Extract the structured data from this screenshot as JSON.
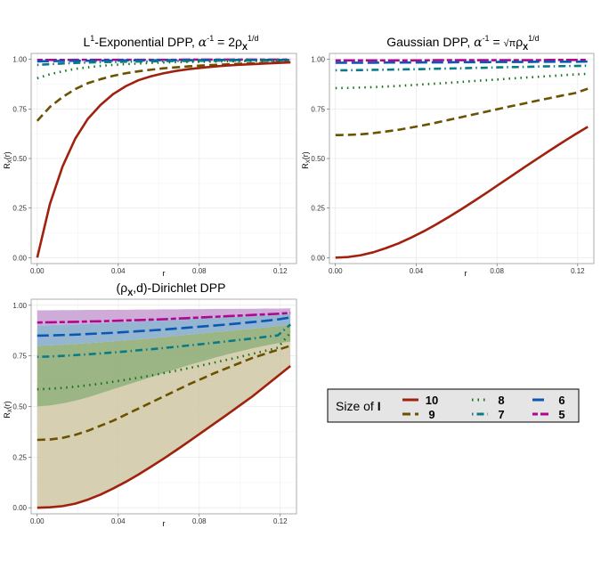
{
  "chart_data": [
    {
      "type": "line",
      "title": "L¹-Exponential DPP, α⁻¹ = 2ρX^1/d",
      "title_parts": {
        "a": "L",
        "b": "1",
        "c": "-Exponential DPP, ",
        "d": "α",
        "e": "-1",
        "f": " = 2ρ",
        "g": "X",
        "h": "1/d"
      },
      "xlabel": "r",
      "ylabel": "R_X(r)",
      "ylabel_parts": {
        "a": "R",
        "b": "X",
        "c": "(r)"
      },
      "xlim": [
        -0.003,
        0.128
      ],
      "ylim": [
        -0.03,
        1.03
      ],
      "xticks": [
        0.0,
        0.04,
        0.08,
        0.12
      ],
      "xtick_labels": [
        "0.00",
        "0.04",
        "0.08",
        "0.12"
      ],
      "yticks": [
        0.0,
        0.25,
        0.5,
        0.75,
        1.0
      ],
      "ytick_labels": [
        "0.00",
        "0.25",
        "0.50",
        "0.75",
        "1.00"
      ],
      "x": [
        0.0,
        0.00625,
        0.0125,
        0.01875,
        0.025,
        0.03125,
        0.0375,
        0.04375,
        0.05,
        0.05625,
        0.0625,
        0.06875,
        0.075,
        0.08125,
        0.0875,
        0.09375,
        0.1,
        0.10625,
        0.1125,
        0.11875,
        0.125
      ],
      "series": [
        {
          "name": "10",
          "values": [
            0.0,
            0.27,
            0.46,
            0.6,
            0.7,
            0.77,
            0.825,
            0.865,
            0.895,
            0.915,
            0.93,
            0.942,
            0.951,
            0.958,
            0.964,
            0.969,
            0.973,
            0.976,
            0.979,
            0.982,
            0.985
          ]
        },
        {
          "name": "9",
          "values": [
            0.69,
            0.76,
            0.81,
            0.85,
            0.88,
            0.9,
            0.917,
            0.93,
            0.94,
            0.948,
            0.955,
            0.96,
            0.965,
            0.969,
            0.972,
            0.975,
            0.978,
            0.98,
            0.982,
            0.984,
            0.986
          ]
        },
        {
          "name": "8",
          "values": [
            0.905,
            0.925,
            0.94,
            0.952,
            0.96,
            0.967,
            0.972,
            0.976,
            0.979,
            0.982,
            0.984,
            0.986,
            0.987,
            0.988,
            0.989,
            0.99,
            0.991,
            0.992,
            0.992,
            0.993,
            0.993
          ]
        },
        {
          "name": "7",
          "values": [
            0.972,
            0.976,
            0.979,
            0.982,
            0.984,
            0.986,
            0.987,
            0.988,
            0.989,
            0.99,
            0.991,
            0.992,
            0.992,
            0.993,
            0.993,
            0.994,
            0.994,
            0.994,
            0.995,
            0.995,
            0.995
          ]
        },
        {
          "name": "6",
          "values": [
            0.99,
            0.991,
            0.992,
            0.993,
            0.993,
            0.994,
            0.994,
            0.995,
            0.995,
            0.995,
            0.996,
            0.996,
            0.996,
            0.996,
            0.997,
            0.997,
            0.997,
            0.997,
            0.997,
            0.997,
            0.997
          ]
        },
        {
          "name": "5",
          "values": [
            0.997,
            0.997,
            0.997,
            0.998,
            0.998,
            0.998,
            0.998,
            0.998,
            0.998,
            0.998,
            0.998,
            0.998,
            0.999,
            0.999,
            0.999,
            0.999,
            0.999,
            0.999,
            0.999,
            0.999,
            0.999
          ]
        }
      ]
    },
    {
      "type": "line",
      "title": "Gaussian DPP, α⁻¹ = √πρX^1/d",
      "title_parts": {
        "a": "Gaussian DPP, ",
        "b": "α",
        "c": "-1",
        "d": " = ",
        "e": "√π",
        "f": "ρ",
        "g": "X",
        "h": "1/d"
      },
      "xlabel": "r",
      "ylabel": "R_X(r)",
      "ylabel_parts": {
        "a": "R",
        "b": "X",
        "c": "(r)"
      },
      "xlim": [
        -0.003,
        0.128
      ],
      "ylim": [
        -0.03,
        1.03
      ],
      "xticks": [
        0.0,
        0.04,
        0.08,
        0.12
      ],
      "xtick_labels": [
        "0.00",
        "0.04",
        "0.08",
        "0.12"
      ],
      "yticks": [
        0.0,
        0.25,
        0.5,
        0.75,
        1.0
      ],
      "ytick_labels": [
        "0.00",
        "0.25",
        "0.50",
        "0.75",
        "1.00"
      ],
      "x": [
        0.0,
        0.00625,
        0.0125,
        0.01875,
        0.025,
        0.03125,
        0.0375,
        0.04375,
        0.05,
        0.05625,
        0.0625,
        0.06875,
        0.075,
        0.08125,
        0.0875,
        0.09375,
        0.1,
        0.10625,
        0.1125,
        0.11875,
        0.125
      ],
      "series": [
        {
          "name": "10",
          "values": [
            0.0,
            0.003,
            0.012,
            0.027,
            0.048,
            0.072,
            0.101,
            0.133,
            0.168,
            0.206,
            0.245,
            0.286,
            0.328,
            0.371,
            0.414,
            0.457,
            0.499,
            0.541,
            0.582,
            0.622,
            0.66
          ]
        },
        {
          "name": "9",
          "values": [
            0.618,
            0.619,
            0.622,
            0.628,
            0.636,
            0.645,
            0.656,
            0.668,
            0.681,
            0.695,
            0.709,
            0.723,
            0.737,
            0.751,
            0.765,
            0.778,
            0.792,
            0.805,
            0.818,
            0.83,
            0.852
          ]
        },
        {
          "name": "8",
          "values": [
            0.855,
            0.856,
            0.858,
            0.86,
            0.863,
            0.866,
            0.87,
            0.874,
            0.878,
            0.882,
            0.886,
            0.891,
            0.895,
            0.899,
            0.904,
            0.908,
            0.912,
            0.916,
            0.92,
            0.924,
            0.927
          ]
        },
        {
          "name": "7",
          "values": [
            0.945,
            0.945,
            0.946,
            0.947,
            0.948,
            0.949,
            0.95,
            0.951,
            0.953,
            0.954,
            0.955,
            0.957,
            0.958,
            0.96,
            0.961,
            0.962,
            0.964,
            0.965,
            0.966,
            0.967,
            0.968
          ]
        },
        {
          "name": "6",
          "values": [
            0.983,
            0.983,
            0.983,
            0.983,
            0.984,
            0.984,
            0.984,
            0.985,
            0.985,
            0.985,
            0.986,
            0.986,
            0.986,
            0.987,
            0.987,
            0.987,
            0.988,
            0.988,
            0.988,
            0.988,
            0.989
          ]
        },
        {
          "name": "5",
          "values": [
            0.995,
            0.995,
            0.995,
            0.995,
            0.995,
            0.995,
            0.995,
            0.995,
            0.996,
            0.996,
            0.996,
            0.996,
            0.996,
            0.996,
            0.996,
            0.996,
            0.996,
            0.997,
            0.997,
            0.997,
            0.997
          ]
        }
      ]
    },
    {
      "type": "area",
      "title": "(ρX,d)-Dirichlet DPP",
      "title_parts": {
        "a": "(ρ",
        "b": "X",
        "c": ",d)-Dirichlet DPP"
      },
      "xlabel": "r",
      "ylabel": "R_X(r)",
      "ylabel_parts": {
        "a": "R",
        "b": "X",
        "c": "(r)"
      },
      "xlim": [
        -0.003,
        0.128
      ],
      "ylim": [
        -0.03,
        1.03
      ],
      "xticks": [
        0.0,
        0.04,
        0.08,
        0.12
      ],
      "xtick_labels": [
        "0.00",
        "0.04",
        "0.08",
        "0.12"
      ],
      "yticks": [
        0.0,
        0.25,
        0.5,
        0.75,
        1.0
      ],
      "ytick_labels": [
        "0.00",
        "0.25",
        "0.50",
        "0.75",
        "1.00"
      ],
      "x": [
        0.0,
        0.00625,
        0.0125,
        0.01875,
        0.025,
        0.03125,
        0.0375,
        0.04375,
        0.05,
        0.05625,
        0.0625,
        0.06875,
        0.075,
        0.08125,
        0.0875,
        0.09375,
        0.1,
        0.10625,
        0.1125,
        0.11875,
        0.125
      ],
      "series": [
        {
          "name": "10",
          "values": [
            0.0,
            0.002,
            0.008,
            0.02,
            0.04,
            0.065,
            0.095,
            0.128,
            0.164,
            0.203,
            0.243,
            0.285,
            0.328,
            0.372,
            0.416,
            0.46,
            0.505,
            0.55,
            0.6,
            0.65,
            0.7
          ]
        },
        {
          "name": "9",
          "values": [
            0.335,
            0.337,
            0.345,
            0.36,
            0.38,
            0.405,
            0.43,
            0.46,
            0.49,
            0.52,
            0.55,
            0.58,
            0.61,
            0.637,
            0.665,
            0.69,
            0.715,
            0.74,
            0.76,
            0.78,
            0.8
          ]
        },
        {
          "name": "8",
          "values": [
            0.585,
            0.588,
            0.592,
            0.598,
            0.605,
            0.613,
            0.622,
            0.632,
            0.642,
            0.653,
            0.665,
            0.677,
            0.69,
            0.703,
            0.717,
            0.731,
            0.745,
            0.76,
            0.775,
            0.79,
            0.865
          ]
        },
        {
          "name": "7",
          "values": [
            0.745,
            0.747,
            0.75,
            0.754,
            0.758,
            0.762,
            0.767,
            0.772,
            0.778,
            0.783,
            0.789,
            0.795,
            0.802,
            0.808,
            0.815,
            0.822,
            0.829,
            0.836,
            0.844,
            0.851,
            0.905
          ]
        },
        {
          "name": "6",
          "values": [
            0.85,
            0.851,
            0.853,
            0.855,
            0.858,
            0.861,
            0.864,
            0.868,
            0.872,
            0.876,
            0.88,
            0.885,
            0.89,
            0.895,
            0.9,
            0.905,
            0.911,
            0.917,
            0.923,
            0.93,
            0.94
          ]
        },
        {
          "name": "5",
          "values": [
            0.915,
            0.916,
            0.917,
            0.918,
            0.92,
            0.921,
            0.923,
            0.925,
            0.927,
            0.929,
            0.931,
            0.934,
            0.937,
            0.94,
            0.943,
            0.946,
            0.949,
            0.952,
            0.955,
            0.958,
            0.962
          ]
        }
      ],
      "bands": [
        {
          "name": "10",
          "lower": [
            0.0,
            0.002,
            0.008,
            0.02,
            0.04,
            0.065,
            0.095,
            0.128,
            0.164,
            0.203,
            0.243,
            0.285,
            0.328,
            0.372,
            0.416,
            0.46,
            0.505,
            0.55,
            0.6,
            0.65,
            0.7
          ],
          "upper": [
            0.5,
            0.505,
            0.515,
            0.528,
            0.545,
            0.565,
            0.585,
            0.605,
            0.625,
            0.645,
            0.665,
            0.685,
            0.705,
            0.722,
            0.74,
            0.757,
            0.772,
            0.787,
            0.8,
            0.812,
            0.82
          ]
        },
        {
          "name": "8",
          "lower": [
            0.5,
            0.505,
            0.515,
            0.528,
            0.545,
            0.565,
            0.585,
            0.605,
            0.625,
            0.645,
            0.665,
            0.685,
            0.705,
            0.722,
            0.74,
            0.757,
            0.772,
            0.787,
            0.8,
            0.812,
            0.82
          ],
          "upper": [
            0.8,
            0.802,
            0.805,
            0.809,
            0.813,
            0.817,
            0.822,
            0.827,
            0.832,
            0.837,
            0.843,
            0.849,
            0.855,
            0.861,
            0.867,
            0.873,
            0.879,
            0.885,
            0.891,
            0.897,
            0.905
          ]
        },
        {
          "name": "6",
          "lower": [
            0.8,
            0.802,
            0.805,
            0.809,
            0.813,
            0.817,
            0.822,
            0.827,
            0.832,
            0.837,
            0.843,
            0.849,
            0.855,
            0.861,
            0.867,
            0.873,
            0.879,
            0.885,
            0.891,
            0.897,
            0.905
          ],
          "upper": [
            0.9,
            0.902,
            0.904,
            0.906,
            0.908,
            0.911,
            0.914,
            0.917,
            0.92,
            0.923,
            0.926,
            0.929,
            0.932,
            0.935,
            0.938,
            0.941,
            0.944,
            0.947,
            0.95,
            0.953,
            0.956
          ]
        },
        {
          "name": "5",
          "lower": [
            0.9,
            0.902,
            0.904,
            0.906,
            0.908,
            0.911,
            0.914,
            0.917,
            0.92,
            0.923,
            0.926,
            0.929,
            0.932,
            0.935,
            0.938,
            0.941,
            0.944,
            0.947,
            0.95,
            0.953,
            0.956
          ],
          "upper": [
            0.975,
            0.975,
            0.976,
            0.976,
            0.977,
            0.977,
            0.978,
            0.978,
            0.979,
            0.979,
            0.98,
            0.98,
            0.981,
            0.981,
            0.982,
            0.982,
            0.983,
            0.983,
            0.984,
            0.984,
            0.985
          ]
        }
      ]
    }
  ],
  "legend": {
    "title_text": "Size of ",
    "title_bold": "I",
    "items": [
      {
        "label": "10",
        "color": "#a0220e",
        "dash": "solid"
      },
      {
        "label": "9",
        "color": "#6b5100",
        "dash": "dash"
      },
      {
        "label": "8",
        "color": "#137318",
        "dash": "dot"
      },
      {
        "label": "7",
        "color": "#0a7a86",
        "dash": "dotdash"
      },
      {
        "label": "6",
        "color": "#0a57b5",
        "dash": "longdash"
      },
      {
        "label": "5",
        "color": "#b1078f",
        "dash": "twodash"
      }
    ]
  },
  "band_colors": {
    "10": "#cfc7a3",
    "8": "#8ba870",
    "6": "#82a9c8",
    "5": "#c79cd1"
  }
}
